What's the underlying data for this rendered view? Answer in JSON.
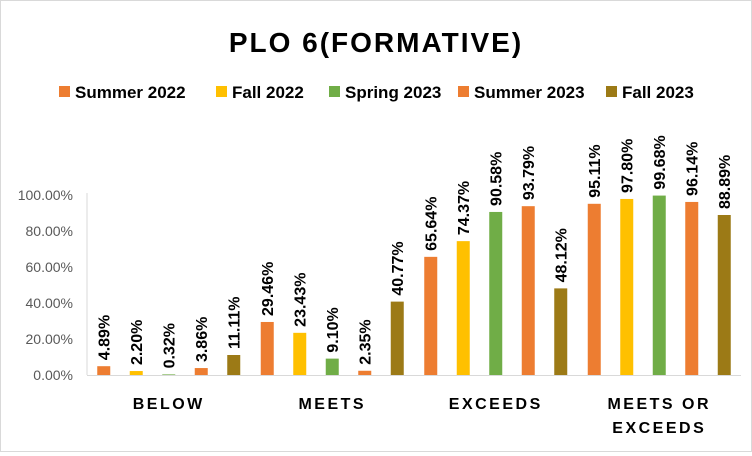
{
  "chart_data": {
    "type": "bar",
    "title": "PLO 6(FORMATIVE)",
    "categories": [
      [
        "BELOW"
      ],
      [
        "MEETS"
      ],
      [
        "EXCEEDS"
      ],
      [
        "MEETS OR",
        "EXCEEDS"
      ]
    ],
    "series": [
      {
        "name": "Summer 2022",
        "color": "#ED7D31",
        "values": [
          4.89,
          29.46,
          65.64,
          95.11
        ]
      },
      {
        "name": "Fall 2022",
        "color": "#FFC000",
        "values": [
          2.2,
          23.43,
          74.37,
          97.8
        ]
      },
      {
        "name": "Spring 2023",
        "color": "#70AD47",
        "values": [
          0.32,
          9.1,
          90.58,
          99.68
        ]
      },
      {
        "name": "Summer 2023",
        "color": "#ED7D31",
        "values": [
          3.86,
          2.35,
          93.79,
          96.14
        ]
      },
      {
        "name": "Fall 2023",
        "color": "#9C7A16",
        "values": [
          11.11,
          40.77,
          48.12,
          88.89
        ]
      }
    ],
    "data_labels": [
      [
        "4.89%",
        "29.46%",
        "65.64%",
        "95.11%"
      ],
      [
        "2.20%",
        "23.43%",
        "74.37%",
        "97.80%"
      ],
      [
        "0.32%",
        "9.10%",
        "90.58%",
        "99.68%"
      ],
      [
        "3.86%",
        "2.35%",
        "93.79%",
        "96.14%"
      ],
      [
        "11.11%",
        "40.77%",
        "48.12%",
        "88.89%"
      ]
    ],
    "ylim": [
      0,
      100
    ],
    "yticks": [
      0,
      20,
      40,
      60,
      80,
      100
    ],
    "ytick_labels": [
      "0.00%",
      "20.00%",
      "40.00%",
      "60.00%",
      "80.00%",
      "100.00%"
    ],
    "legend_position": "top",
    "grid": false
  }
}
